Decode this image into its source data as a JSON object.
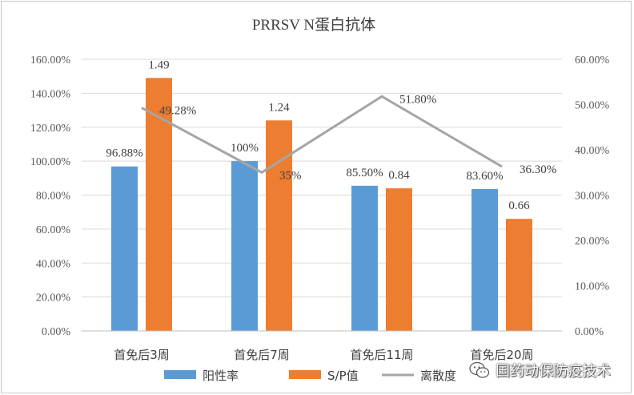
{
  "chart_data": {
    "type": "bar",
    "title": "PRRSV N蛋白抗体",
    "categories": [
      "首免后3周",
      "首免后7周",
      "首免后11周",
      "首免后20周"
    ],
    "series": [
      {
        "name": "阳性率",
        "kind": "bar",
        "axis": "left",
        "color": "#5b9bd5",
        "values": [
          96.88,
          100,
          85.5,
          83.6
        ],
        "labels": [
          "96.88%",
          "100%",
          "85.50%",
          "83.60%"
        ]
      },
      {
        "name": "S/P值",
        "kind": "bar",
        "axis": "left",
        "color": "#ed7d31",
        "values": [
          1.49,
          1.24,
          0.84,
          0.66
        ],
        "labels": [
          "1.49",
          "1.24",
          "0.84",
          "0.66"
        ]
      },
      {
        "name": "离散度",
        "kind": "line",
        "axis": "right",
        "color": "#a5a5a5",
        "values": [
          49.28,
          35,
          51.8,
          36.3
        ],
        "labels": [
          "49.28%",
          "35%",
          "51.80%",
          "36.30%"
        ]
      }
    ],
    "y_left": {
      "min": 0,
      "max": 160,
      "ticks": [
        "0.00%",
        "20.00%",
        "40.00%",
        "60.00%",
        "80.00%",
        "100.00%",
        "120.00%",
        "140.00%",
        "160.00%"
      ]
    },
    "y_right": {
      "min": 0,
      "max": 60,
      "ticks": [
        "0.00%",
        "10.00%",
        "20.00%",
        "30.00%",
        "40.00%",
        "50.00%",
        "60.00%"
      ]
    },
    "grid": true,
    "legend_position": "bottom"
  },
  "watermark": {
    "text": "国药动保防疫技术"
  }
}
